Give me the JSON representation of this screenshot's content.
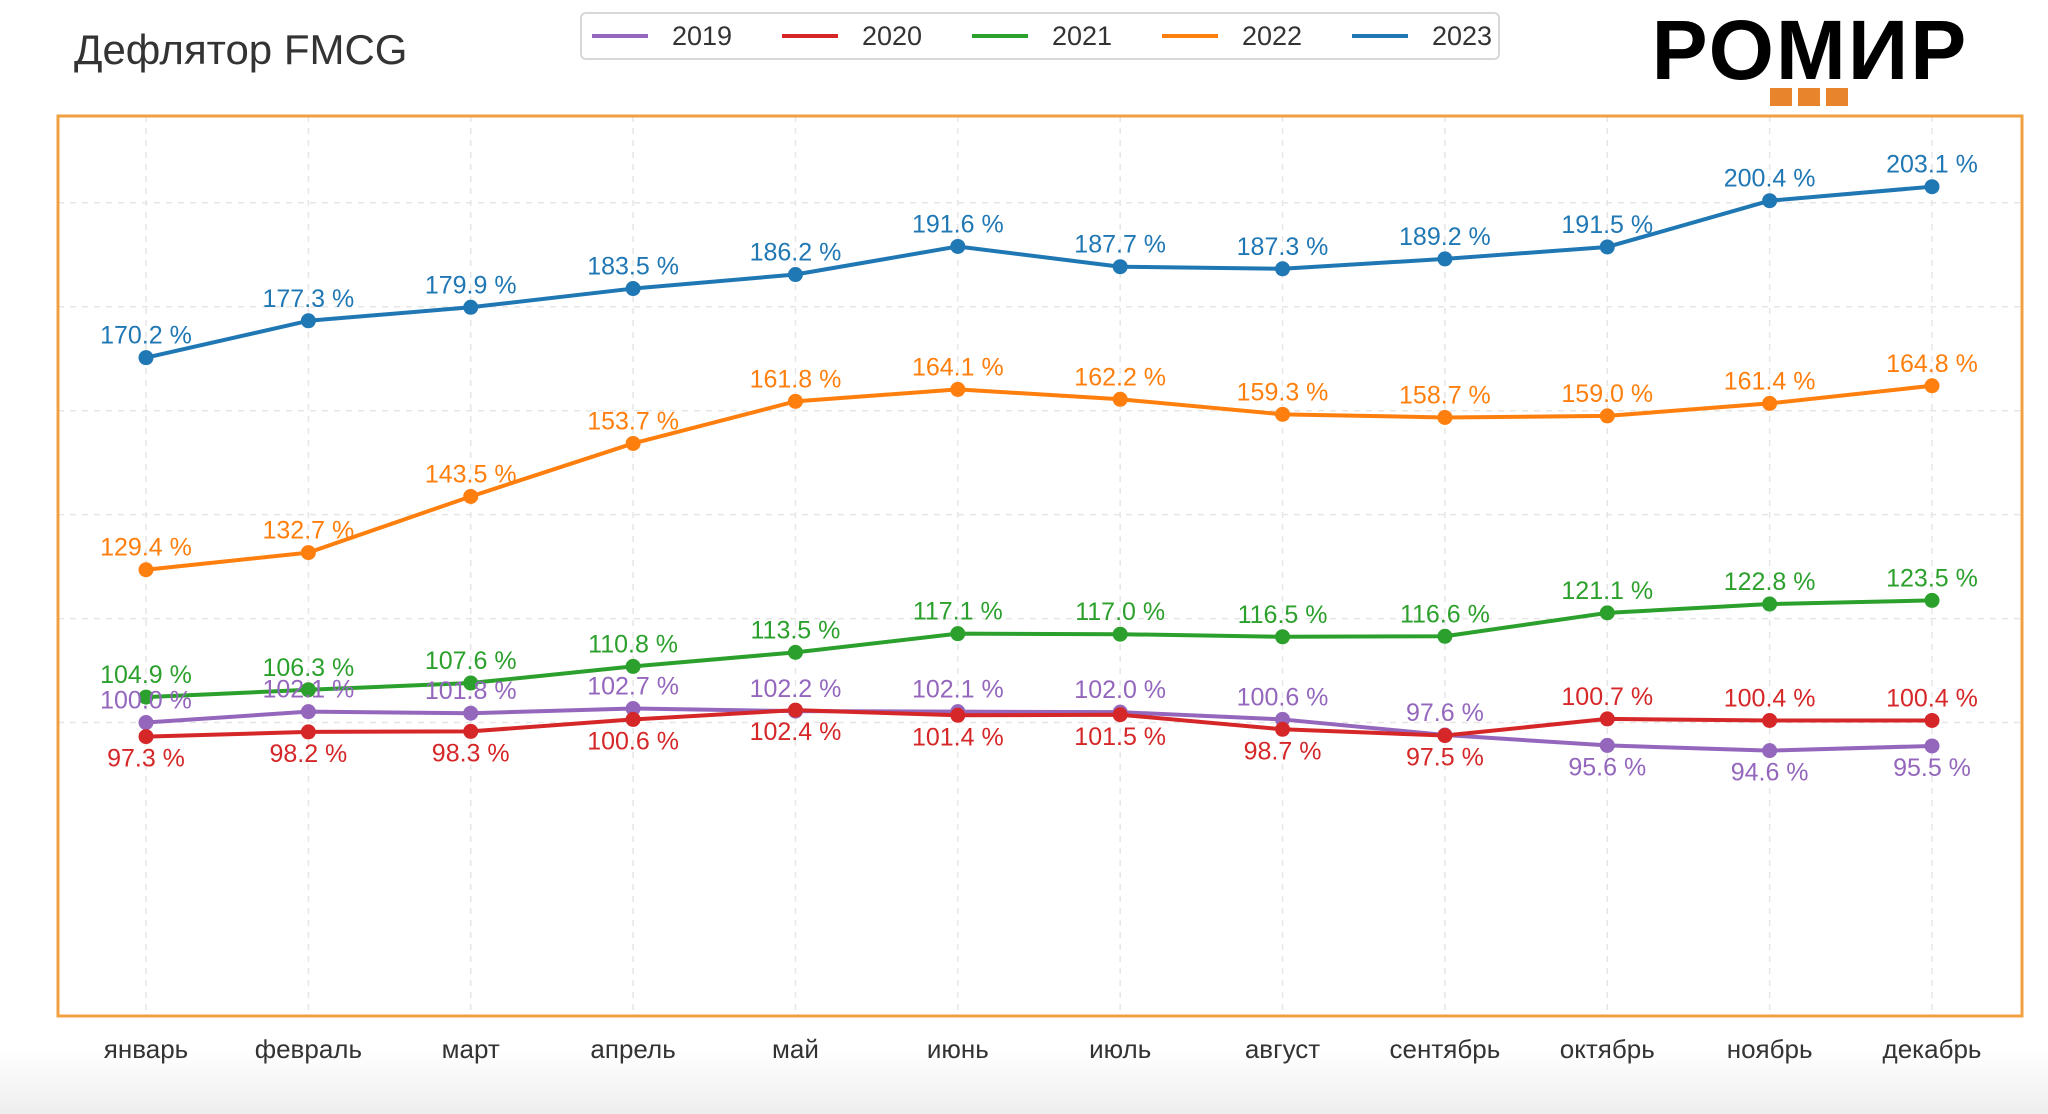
{
  "title": "Дефлятор FMCG",
  "logo": {
    "text": "РОМИР"
  },
  "colors": {
    "frame": "#f0a040",
    "grid": "#e6e6e6",
    "axis_text": "#333333"
  },
  "chart_data": {
    "type": "line",
    "title": "Дефлятор FMCG",
    "xlabel": "",
    "ylabel": "",
    "categories": [
      "январь",
      "февраль",
      "март",
      "апрель",
      "май",
      "июнь",
      "июль",
      "август",
      "сентябрь",
      "октябрь",
      "ноябрь",
      "декабрь"
    ],
    "value_suffix": " %",
    "ylim": [
      88,
      212
    ],
    "grid": true,
    "legend_position": "top",
    "series": [
      {
        "name": "2019",
        "color": "#9467bd",
        "values": [
          100.0,
          102.1,
          101.8,
          102.7,
          102.2,
          102.1,
          102.0,
          100.6,
          97.6,
          95.6,
          94.6,
          95.5
        ],
        "label_side": [
          "above",
          "above",
          "above",
          "above",
          "above",
          "above",
          "above",
          "above",
          "above",
          "below",
          "below",
          "below"
        ]
      },
      {
        "name": "2020",
        "color": "#d62728",
        "values": [
          97.3,
          98.2,
          98.3,
          100.6,
          102.4,
          101.4,
          101.5,
          98.7,
          97.5,
          100.7,
          100.4,
          100.4
        ],
        "label_side": [
          "below",
          "below",
          "below",
          "below",
          "below",
          "below",
          "below",
          "below",
          "below",
          "above",
          "above",
          "above"
        ]
      },
      {
        "name": "2021",
        "color": "#2ca02c",
        "values": [
          104.9,
          106.3,
          107.6,
          110.8,
          113.5,
          117.1,
          117.0,
          116.5,
          116.6,
          121.1,
          122.8,
          123.5
        ],
        "label_side": [
          "above",
          "above",
          "above",
          "above",
          "above",
          "above",
          "above",
          "above",
          "above",
          "above",
          "above",
          "above"
        ]
      },
      {
        "name": "2022",
        "color": "#ff7f0e",
        "values": [
          129.4,
          132.7,
          143.5,
          153.7,
          161.8,
          164.1,
          162.2,
          159.3,
          158.7,
          159.0,
          161.4,
          164.8
        ],
        "label_side": [
          "above",
          "above",
          "above",
          "above",
          "above",
          "above",
          "above",
          "above",
          "above",
          "above",
          "above",
          "above"
        ]
      },
      {
        "name": "2023",
        "color": "#1f77b4",
        "values": [
          170.2,
          177.3,
          179.9,
          183.5,
          186.2,
          191.6,
          187.7,
          187.3,
          189.2,
          191.5,
          200.4,
          203.1
        ],
        "label_side": [
          "above",
          "above",
          "above",
          "above",
          "above",
          "above",
          "above",
          "above",
          "above",
          "above",
          "above",
          "above"
        ]
      }
    ]
  }
}
